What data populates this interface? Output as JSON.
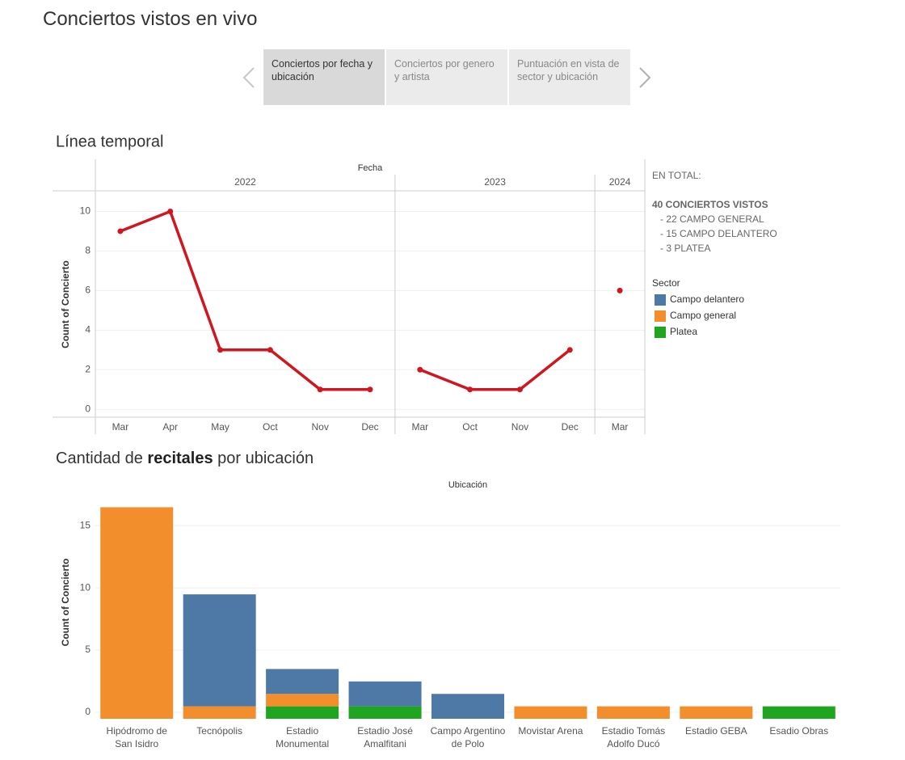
{
  "header": {
    "title": "Conciertos vistos en vivo"
  },
  "tabs": [
    {
      "label": "Conciertos por fecha y ubicación",
      "active": true
    },
    {
      "label": "Conciertos por genero y artista",
      "active": false
    },
    {
      "label": "Puntuación en vista de sector y ubicación",
      "active": false
    }
  ],
  "summary": {
    "heading": "EN TOTAL:",
    "lines": [
      "40 CONCIERTOS VISTOS",
      "- 22 CAMPO GENERAL",
      "- 15 CAMPO DELANTERO",
      "- 3 PLATEA"
    ]
  },
  "chart_data": [
    {
      "type": "line",
      "title": "Línea temporal",
      "x_title": "Fecha",
      "y_title": "Count of Concierto",
      "color": "#d0161f",
      "ylim": [
        -0.4,
        11
      ],
      "yticks": [
        0,
        2,
        4,
        6,
        8,
        10
      ],
      "grid": true,
      "groups": [
        {
          "name": "2022",
          "categories": [
            "Mar",
            "Apr",
            "May",
            "Oct",
            "Nov",
            "Dec"
          ],
          "values": [
            9,
            10,
            3,
            3,
            1,
            1
          ]
        },
        {
          "name": "2023",
          "categories": [
            "Mar",
            "Oct",
            "Nov",
            "Dec"
          ],
          "values": [
            2,
            1,
            1,
            3
          ]
        },
        {
          "name": "2024",
          "categories": [
            "Mar"
          ],
          "values": [
            6
          ]
        }
      ]
    },
    {
      "type": "bar",
      "stacked": true,
      "title_parts": [
        "Cantidad de ",
        "recitales",
        " por ubicación"
      ],
      "x_title": "Ubicación",
      "y_title": "Count of Concierto",
      "ylim": [
        0,
        18
      ],
      "yticks": [
        0,
        5,
        10,
        15
      ],
      "grid": true,
      "legend_title": "Sector",
      "legend": "right",
      "categories": [
        "Hipódromo de San Isidro",
        "Tecnópolis",
        "Estadio Monumental",
        "Estadio José Amalfitani",
        "Campo Argentino de Polo",
        "Movistar Arena",
        "Estadio Tomás Adolfo Ducó",
        "Estadio GEBA",
        "Esadio Obras"
      ],
      "series": [
        {
          "name": "Campo delantero",
          "color": "#4e79a7",
          "values": [
            0,
            9,
            2,
            2,
            2,
            0,
            0,
            0,
            0
          ]
        },
        {
          "name": "Campo general",
          "color": "#f28e2b",
          "values": [
            17,
            1,
            1,
            0,
            0,
            1,
            1,
            1,
            0
          ]
        },
        {
          "name": "Platea",
          "color": "#1fa51f",
          "values": [
            0,
            0,
            1,
            1,
            0,
            0,
            0,
            0,
            1
          ]
        }
      ]
    }
  ]
}
